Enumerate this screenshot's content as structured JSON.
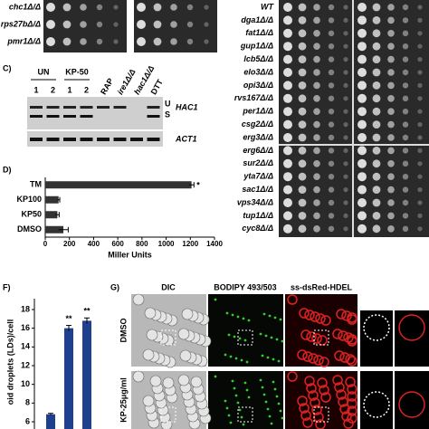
{
  "top_strains": [
    "chc1Δ/Δ",
    "rps27bΔ/Δ",
    "pmr1Δ/Δ"
  ],
  "panel_c": {
    "label": "C)",
    "groups": [
      "UN",
      "KP-50"
    ],
    "lanes": [
      "1",
      "2",
      "1",
      "2",
      "RAP",
      "ire1Δ/Δ",
      "hac1Δ/Δ",
      "DTT"
    ],
    "genes": [
      "HAC1",
      "ACT1"
    ],
    "bands": [
      "U",
      "S"
    ]
  },
  "chart_data": [
    {
      "type": "bar",
      "orientation": "horizontal",
      "panel_label": "D)",
      "categories": [
        "TM",
        "KP100",
        "KP50",
        "DMSO"
      ],
      "values": [
        1210,
        110,
        100,
        150
      ],
      "errors": [
        20,
        10,
        15,
        40
      ],
      "markers": [
        "*",
        null,
        null,
        null
      ],
      "color": "#333333",
      "xlim": [
        0,
        1400
      ],
      "xticks": [
        0,
        200,
        400,
        600,
        800,
        1000,
        1200,
        1400
      ],
      "xlabel": "Miller Units"
    },
    {
      "type": "bar",
      "orientation": "vertical",
      "panel_label": "F)",
      "values": [
        6.8,
        16,
        16.8
      ],
      "errors": [
        0.1,
        0.3,
        0.3
      ],
      "markers": [
        null,
        "**",
        "**"
      ],
      "color": "#1f3f8f",
      "ylim": [
        6,
        18
      ],
      "yticks": [
        6,
        8,
        10,
        12,
        14,
        16,
        18
      ],
      "ylabel": "oid droplets (LDs)/cell"
    }
  ],
  "panel_e_strains": [
    "WT",
    "dga1Δ/Δ",
    "fat1Δ/Δ",
    "gup1Δ/Δ",
    "lcb5Δ/Δ",
    "elo3Δ/Δ",
    "opi3Δ/Δ",
    "rvs167Δ/Δ",
    "per1Δ/Δ",
    "csg2Δ/Δ",
    "erg3Δ/Δ",
    "erg6Δ/Δ",
    "sur2Δ/Δ",
    "yta7Δ/Δ",
    "sac1Δ/Δ",
    "vps34Δ/Δ",
    "tup1Δ/Δ",
    "cyc8Δ/Δ"
  ],
  "panel_g": {
    "label": "G)",
    "columns": [
      "DIC",
      "BODIPY 493/503",
      "ss-dsRed-HDEL"
    ],
    "rows": [
      "DMSO",
      "KP-25μg/ml"
    ]
  }
}
